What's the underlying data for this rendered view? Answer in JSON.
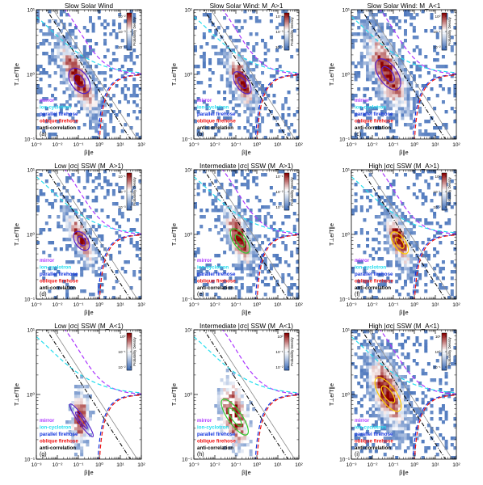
{
  "chart_data": [
    {
      "type": "heatmap",
      "panel_label": "(a)",
      "title": "Slow Solar Wind",
      "xlabel": "β∥e",
      "ylabel": "T⊥e/T∥e",
      "x_scale": "log",
      "y_scale": "log",
      "xlim": [
        0.001,
        100
      ],
      "ylim": [
        0.1,
        10
      ],
      "colorbar_label": "Probability Density",
      "colorbar_ticks": [
        "10⁻²",
        "10⁻³",
        "10⁻⁴"
      ],
      "contour_color": "#5522cc",
      "density_center": [
        -1.0,
        -0.05
      ],
      "density_spread": [
        0.75,
        0.2
      ],
      "density_extent": "wide",
      "legend": [
        "mirror",
        "ion-cyclotron",
        "parallel firehose",
        "oblique firehose",
        "anti-correlation"
      ]
    },
    {
      "type": "heatmap",
      "panel_label": "(b)",
      "title": "Slow Solar Wind: M_A>1",
      "xlabel": "β∥e",
      "ylabel": "T⊥e/T∥e",
      "x_scale": "log",
      "y_scale": "log",
      "xlim": [
        0.001,
        100
      ],
      "ylim": [
        0.1,
        10
      ],
      "colorbar_label": "Probability Density",
      "colorbar_ticks": [
        "10⁻²",
        "10⁻³",
        "10⁻⁴"
      ],
      "contour_color": "#5522cc",
      "density_center": [
        -0.75,
        -0.08
      ],
      "density_spread": [
        0.55,
        0.18
      ],
      "density_extent": "medium",
      "legend": [
        "mirror",
        "ion-cyclotron",
        "parallel firehose",
        "oblique firehose",
        "anti-correlation"
      ]
    },
    {
      "type": "heatmap",
      "panel_label": "(c)",
      "title": "Slow Solar Wind: M_A<1",
      "xlabel": "β∥e",
      "ylabel": "T⊥e/T∥e",
      "x_scale": "log",
      "y_scale": "log",
      "xlim": [
        0.001,
        100
      ],
      "ylim": [
        0.1,
        10
      ],
      "colorbar_label": "Probability Density",
      "colorbar_ticks": [
        "10⁰",
        "10⁻¹",
        "10⁻²"
      ],
      "contour_color": "#5522cc",
      "density_center": [
        -1.3,
        0.05
      ],
      "density_spread": [
        0.8,
        0.25
      ],
      "density_extent": "wide",
      "legend": [
        "mirror",
        "ion-cyclotron",
        "parallel firehose",
        "oblique firehose",
        "anti-correlation"
      ]
    },
    {
      "type": "heatmap",
      "panel_label": "(d)",
      "title": "Low |σc| SSW (M_A>1)",
      "xlabel": "β∥e",
      "ylabel": "T⊥e/T∥e",
      "x_scale": "log",
      "y_scale": "log",
      "xlim": [
        0.001,
        100
      ],
      "ylim": [
        0.1,
        10
      ],
      "colorbar_label": "Probability Density",
      "colorbar_ticks": [
        "10⁻¹",
        "10⁻²",
        "10⁻³"
      ],
      "contour_color": "#5522cc",
      "density_center": [
        -0.9,
        -0.05
      ],
      "density_spread": [
        0.55,
        0.15
      ],
      "density_extent": "medium",
      "legend": [
        "mirror",
        "ion-cyclotron",
        "parallel firehose",
        "oblique firehose",
        "anti-correlation"
      ]
    },
    {
      "type": "heatmap",
      "panel_label": "(e)",
      "title": "Intermediate |σc| SSW (M_A>1)",
      "xlabel": "β∥e",
      "ylabel": "T⊥e/T∥e",
      "x_scale": "log",
      "y_scale": "log",
      "xlim": [
        0.001,
        100
      ],
      "ylim": [
        0.1,
        10
      ],
      "colorbar_label": "Probability Density",
      "colorbar_ticks": [
        "10⁻¹",
        "10⁻²",
        "10⁻³"
      ],
      "contour_color": "#33cc33",
      "density_center": [
        -0.85,
        -0.05
      ],
      "density_spread": [
        0.55,
        0.2
      ],
      "density_extent": "medium",
      "legend": [
        "mirror",
        "ion-cyclotron",
        "parallel firehose",
        "oblique firehose",
        "anti-correlation"
      ]
    },
    {
      "type": "heatmap",
      "panel_label": "(f)",
      "title": "High |σc| SSW (M_A>1)",
      "xlabel": "β∥e",
      "ylabel": "T⊥e/T∥e",
      "x_scale": "log",
      "y_scale": "log",
      "xlim": [
        0.001,
        100
      ],
      "ylim": [
        0.1,
        10
      ],
      "colorbar_label": "Probability Density",
      "colorbar_ticks": [
        "10⁰",
        "10⁻¹",
        "10⁻²"
      ],
      "contour_color": "#ffcc00",
      "density_center": [
        -0.75,
        -0.08
      ],
      "density_spread": [
        0.5,
        0.18
      ],
      "density_extent": "medium",
      "legend": [
        "mirror",
        "ion-cyclotron",
        "parallel firehose",
        "oblique firehose",
        "anti-correlation"
      ]
    },
    {
      "type": "heatmap",
      "panel_label": "(g)",
      "title": "Low |σc| SSW (M_A<1)",
      "xlabel": "β∥e",
      "ylabel": "T⊥e/T∥e",
      "x_scale": "log",
      "y_scale": "log",
      "xlim": [
        0.001,
        100
      ],
      "ylim": [
        0.1,
        10
      ],
      "colorbar_label": "Probability Density",
      "colorbar_ticks": [
        "10⁰",
        "10⁻¹",
        "10⁻²"
      ],
      "contour_color": "#5522cc",
      "density_center": [
        -0.9,
        -0.35
      ],
      "density_spread": [
        0.3,
        0.28
      ],
      "density_extent": "narrow",
      "legend": [
        "mirror",
        "ion-cyclotron",
        "parallel firehose",
        "oblique firehose",
        "anti-correlation"
      ]
    },
    {
      "type": "heatmap",
      "panel_label": "(h)",
      "title": "Intermediate |σc| SSW (M_A<1)",
      "xlabel": "β∥e",
      "ylabel": "T⊥e/T∥e",
      "x_scale": "log",
      "y_scale": "log",
      "xlim": [
        0.001,
        100
      ],
      "ylim": [
        0.1,
        10
      ],
      "colorbar_label": "Probability Density",
      "colorbar_ticks": [
        "10⁰",
        "10⁻¹",
        "10⁻²"
      ],
      "contour_color": "#33cc33",
      "density_center": [
        -1.1,
        -0.3
      ],
      "density_spread": [
        0.6,
        0.3
      ],
      "density_extent": "sparse",
      "legend": [
        "mirror",
        "ion-cyclotron",
        "parallel firehose",
        "oblique firehose",
        "anti-correlation"
      ]
    },
    {
      "type": "heatmap",
      "panel_label": "(i)",
      "title": "High |σc| SSW (M_A<1)",
      "xlabel": "β∥e",
      "ylabel": "T⊥e/T∥e",
      "x_scale": "log",
      "y_scale": "log",
      "xlim": [
        0.001,
        100
      ],
      "ylim": [
        0.1,
        10
      ],
      "colorbar_label": "Probability Density",
      "colorbar_ticks": [
        "10¹",
        "10⁰",
        "10⁻¹"
      ],
      "contour_color": "#ffcc00",
      "density_center": [
        -1.3,
        0.05
      ],
      "density_spread": [
        0.7,
        0.28
      ],
      "density_extent": "wide",
      "legend": [
        "mirror",
        "ion-cyclotron",
        "parallel firehose",
        "oblique firehose",
        "anti-correlation"
      ]
    }
  ],
  "shared": {
    "xticks": [
      {
        "v": -3,
        "t": "10⁻³"
      },
      {
        "v": -2,
        "t": "10⁻²"
      },
      {
        "v": -1,
        "t": "10⁻¹"
      },
      {
        "v": 0,
        "t": "10⁰"
      },
      {
        "v": 1,
        "t": "10¹"
      },
      {
        "v": 2,
        "t": "10²"
      }
    ],
    "yticks": [
      {
        "v": -1,
        "t": "10⁻¹"
      },
      {
        "v": 0,
        "t": "10⁰"
      },
      {
        "v": 1,
        "t": "10¹"
      }
    ],
    "thresholds": [
      {
        "name": "mirror",
        "color": "#aa33ff",
        "dash": "5,3"
      },
      {
        "name": "ion-cyclotron",
        "color": "#22ddee",
        "dash": "5,3"
      },
      {
        "name": "parallel firehose",
        "color": "#1133dd",
        "dash": "5,3"
      },
      {
        "name": "oblique firehose",
        "color": "#ee1111",
        "dash": "5,3"
      },
      {
        "name": "anti-correlation",
        "color": "#000000",
        "dash": "5,2,1,2"
      }
    ]
  }
}
